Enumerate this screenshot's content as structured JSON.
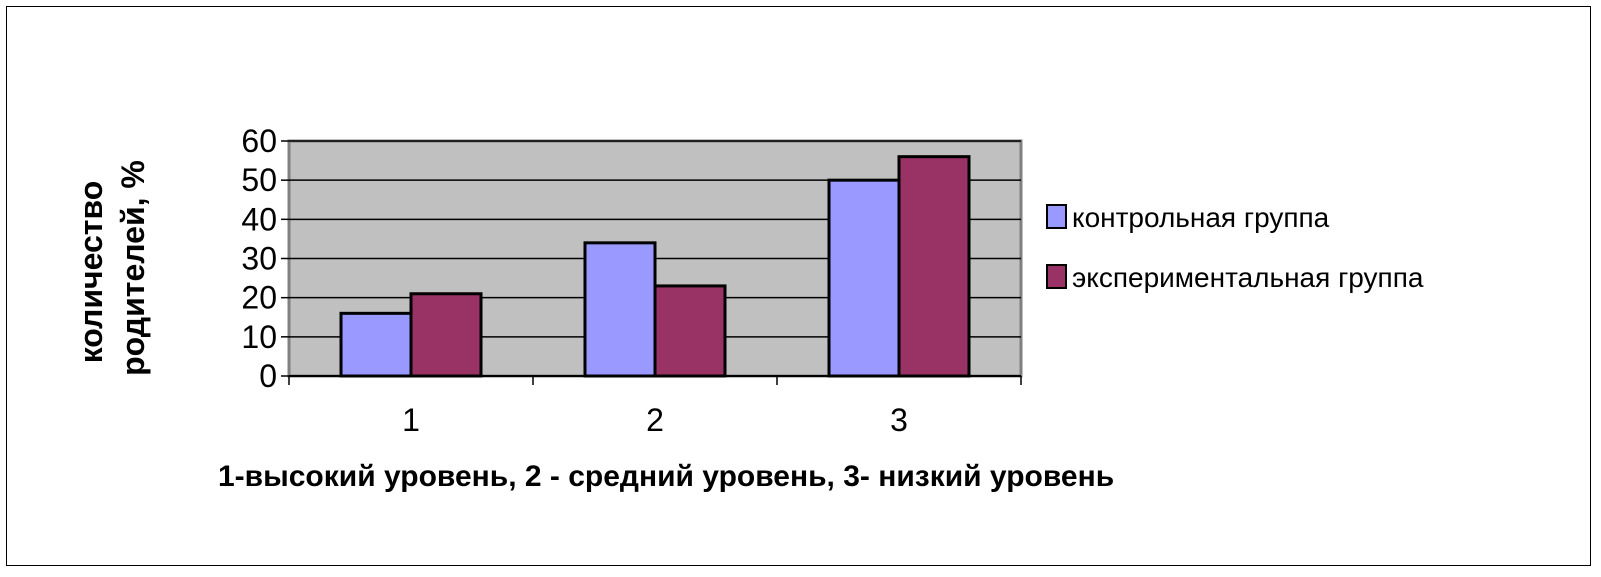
{
  "chart_data": {
    "type": "bar",
    "categories": [
      "1",
      "2",
      "3"
    ],
    "series": [
      {
        "name": "контрольная группа",
        "values": [
          16,
          34,
          50
        ],
        "color": "#9999ff"
      },
      {
        "name": "экспериментальная группа",
        "values": [
          21,
          23,
          56
        ],
        "color": "#993366"
      }
    ],
    "ylabel_lines": [
      "количество",
      "родителей, %"
    ],
    "xlabel": "1-высокий уровень, 2 - средний уровень, 3- низкий уровень",
    "ylim": [
      0,
      60
    ],
    "yticks": [
      0,
      10,
      20,
      30,
      40,
      50,
      60
    ],
    "grid": true,
    "plot_background": "#c0c0c0",
    "legend_position": "right"
  }
}
